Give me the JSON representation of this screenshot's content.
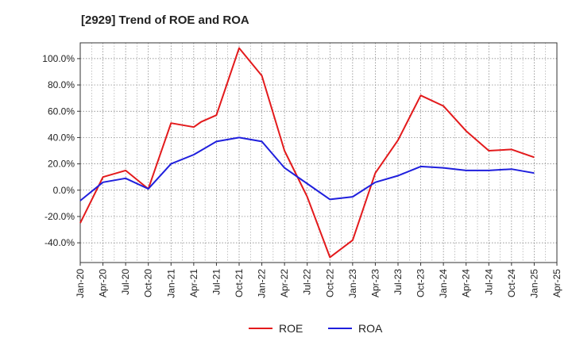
{
  "chart_data": {
    "type": "line",
    "title": "[2929]  Trend of ROE and ROA",
    "xlabel": "",
    "ylabel": "",
    "x_tick_labels": [
      "Jan-20",
      "Apr-20",
      "Jul-20",
      "Oct-20",
      "Jan-21",
      "Apr-21",
      "Jul-21",
      "Oct-21",
      "Jan-22",
      "Apr-22",
      "Jul-22",
      "Oct-22",
      "Jan-23",
      "Apr-23",
      "Jul-23",
      "Oct-23",
      "Jan-24",
      "Apr-24",
      "Jul-24",
      "Oct-24",
      "Jan-25",
      "Apr-25"
    ],
    "y_tick_labels": [
      "-40.0%",
      "-20.0%",
      "0.0%",
      "20.0%",
      "40.0%",
      "60.0%",
      "80.0%",
      "100.0%"
    ],
    "y_ticks": [
      -40,
      -20,
      0,
      20,
      40,
      60,
      80,
      100
    ],
    "ylim": [
      -55,
      112
    ],
    "xlim": [
      "Jan-20",
      "Apr-25"
    ],
    "grid": true,
    "legend_position": "bottom-center",
    "series": [
      {
        "name": "ROE",
        "color": "#e31a1c",
        "x": [
          "Jan-20",
          "Apr-20",
          "Jul-20",
          "Oct-20",
          "Jan-21",
          "Apr-21",
          "May-21",
          "Jul-21",
          "Oct-21",
          "Jan-22",
          "Apr-22",
          "Jul-22",
          "Oct-22",
          "Jan-23",
          "Apr-23",
          "Jul-23",
          "Oct-23",
          "Jan-24",
          "Apr-24",
          "Jul-24",
          "Oct-24",
          "Jan-25"
        ],
        "values": [
          -25,
          10,
          15,
          1,
          51,
          48,
          52,
          57,
          108,
          87,
          30,
          -5,
          -51,
          -38,
          13,
          38,
          72,
          64,
          45,
          30,
          31,
          25
        ]
      },
      {
        "name": "ROA",
        "color": "#1f1fdd",
        "x": [
          "Jan-20",
          "Apr-20",
          "Jul-20",
          "Oct-20",
          "Jan-21",
          "Apr-21",
          "Jul-21",
          "Oct-21",
          "Jan-22",
          "Apr-22",
          "Jul-22",
          "Oct-22",
          "Jan-23",
          "Apr-23",
          "Jul-23",
          "Oct-23",
          "Jan-24",
          "Apr-24",
          "Jul-24",
          "Oct-24",
          "Jan-25"
        ],
        "values": [
          -8,
          6,
          9,
          1,
          20,
          27,
          37,
          40,
          37,
          17,
          5,
          -7,
          -5,
          6,
          11,
          18,
          17,
          15,
          15,
          16,
          13
        ]
      }
    ]
  }
}
